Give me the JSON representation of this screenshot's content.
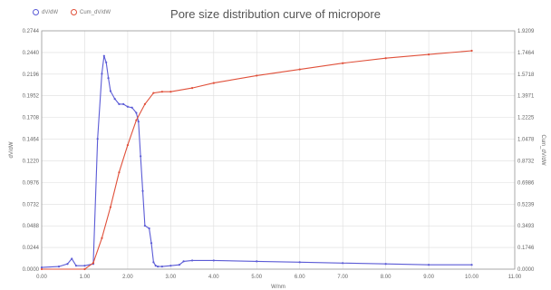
{
  "chart_data": {
    "type": "line",
    "title": "Pore size distribution curve of micropore",
    "xlabel": "W/nm",
    "ylabel_left": "dV/dW",
    "ylabel_right": "Cum_dV/dW",
    "xlim": [
      0,
      11
    ],
    "ylim_left": [
      0,
      0.2744
    ],
    "ylim_right": [
      0,
      1.9209
    ],
    "x_ticks": [
      "0.00",
      "1.00",
      "2.00",
      "3.00",
      "4.00",
      "5.00",
      "6.00",
      "7.00",
      "8.00",
      "9.00",
      "10.00",
      "11.00"
    ],
    "y_ticks_left": [
      "0.0000",
      "0.0244",
      "0.0488",
      "0.0732",
      "0.0976",
      "0.1220",
      "0.1464",
      "0.1708",
      "0.1952",
      "0.2196",
      "0.2440",
      "0.2744"
    ],
    "y_ticks_right": [
      "0.0000",
      "0.1746",
      "0.3493",
      "0.5239",
      "0.6986",
      "0.8732",
      "1.0478",
      "1.2225",
      "1.3971",
      "1.5718",
      "1.7464",
      "1.9209"
    ],
    "grid": true,
    "legend_position": "top-left",
    "colors": {
      "series1": "#5b5bd6",
      "series2": "#e0503a",
      "grid": "#dddddd"
    },
    "series": [
      {
        "name": "dV/dW",
        "axis": "left",
        "x": [
          0.0,
          0.4,
          0.6,
          0.7,
          0.8,
          1.0,
          1.2,
          1.3,
          1.4,
          1.45,
          1.5,
          1.55,
          1.6,
          1.7,
          1.8,
          1.9,
          2.0,
          2.1,
          2.2,
          2.25,
          2.3,
          2.35,
          2.4,
          2.5,
          2.55,
          2.6,
          2.65,
          2.7,
          2.8,
          3.0,
          3.2,
          3.3,
          3.5,
          4.0,
          5.0,
          6.0,
          7.0,
          8.0,
          9.0,
          10.0
        ],
        "y": [
          0.002,
          0.003,
          0.006,
          0.012,
          0.004,
          0.004,
          0.006,
          0.15,
          0.225,
          0.2455,
          0.238,
          0.22,
          0.205,
          0.196,
          0.19,
          0.19,
          0.187,
          0.186,
          0.18,
          0.17,
          0.13,
          0.09,
          0.05,
          0.047,
          0.03,
          0.008,
          0.004,
          0.003,
          0.003,
          0.004,
          0.005,
          0.009,
          0.01,
          0.01,
          0.009,
          0.008,
          0.007,
          0.006,
          0.005,
          0.005
        ]
      },
      {
        "name": "Cum_dV/dW",
        "axis": "right",
        "x": [
          0.0,
          1.0,
          1.2,
          1.4,
          1.6,
          1.8,
          2.0,
          2.2,
          2.4,
          2.6,
          2.8,
          3.0,
          3.5,
          4.0,
          5.0,
          6.0,
          7.0,
          8.0,
          9.0,
          10.0
        ],
        "y": [
          0.0,
          0.0,
          0.05,
          0.25,
          0.5,
          0.78,
          1.0,
          1.2,
          1.33,
          1.42,
          1.43,
          1.43,
          1.46,
          1.5,
          1.56,
          1.61,
          1.66,
          1.7,
          1.73,
          1.76
        ]
      }
    ]
  }
}
